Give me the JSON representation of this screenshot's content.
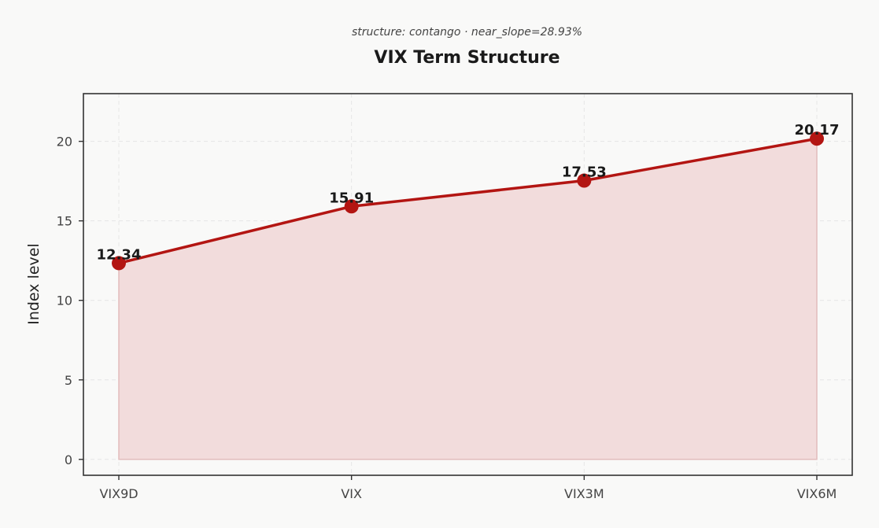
{
  "chart_data": {
    "type": "area",
    "title": "VIX Term Structure",
    "subtitle": "structure: contango · near_slope=28.93%",
    "xlabel": "",
    "ylabel": "Index level",
    "categories": [
      "VIX9D",
      "VIX",
      "VIX3M",
      "VIX6M"
    ],
    "series": [
      {
        "values": [
          12.34,
          15.91,
          17.53,
          20.17
        ],
        "data_labels": [
          "12.34",
          "15.91",
          "17.53",
          "20.17"
        ],
        "color": "#b31512",
        "fill_color": "#f2dcdc"
      }
    ],
    "ylim": [
      -1,
      23
    ],
    "yticks": [
      0,
      5,
      10,
      15,
      20
    ],
    "ytick_labels": [
      "0",
      "5",
      "10",
      "15",
      "20"
    ],
    "grid": true,
    "legend": "none"
  }
}
